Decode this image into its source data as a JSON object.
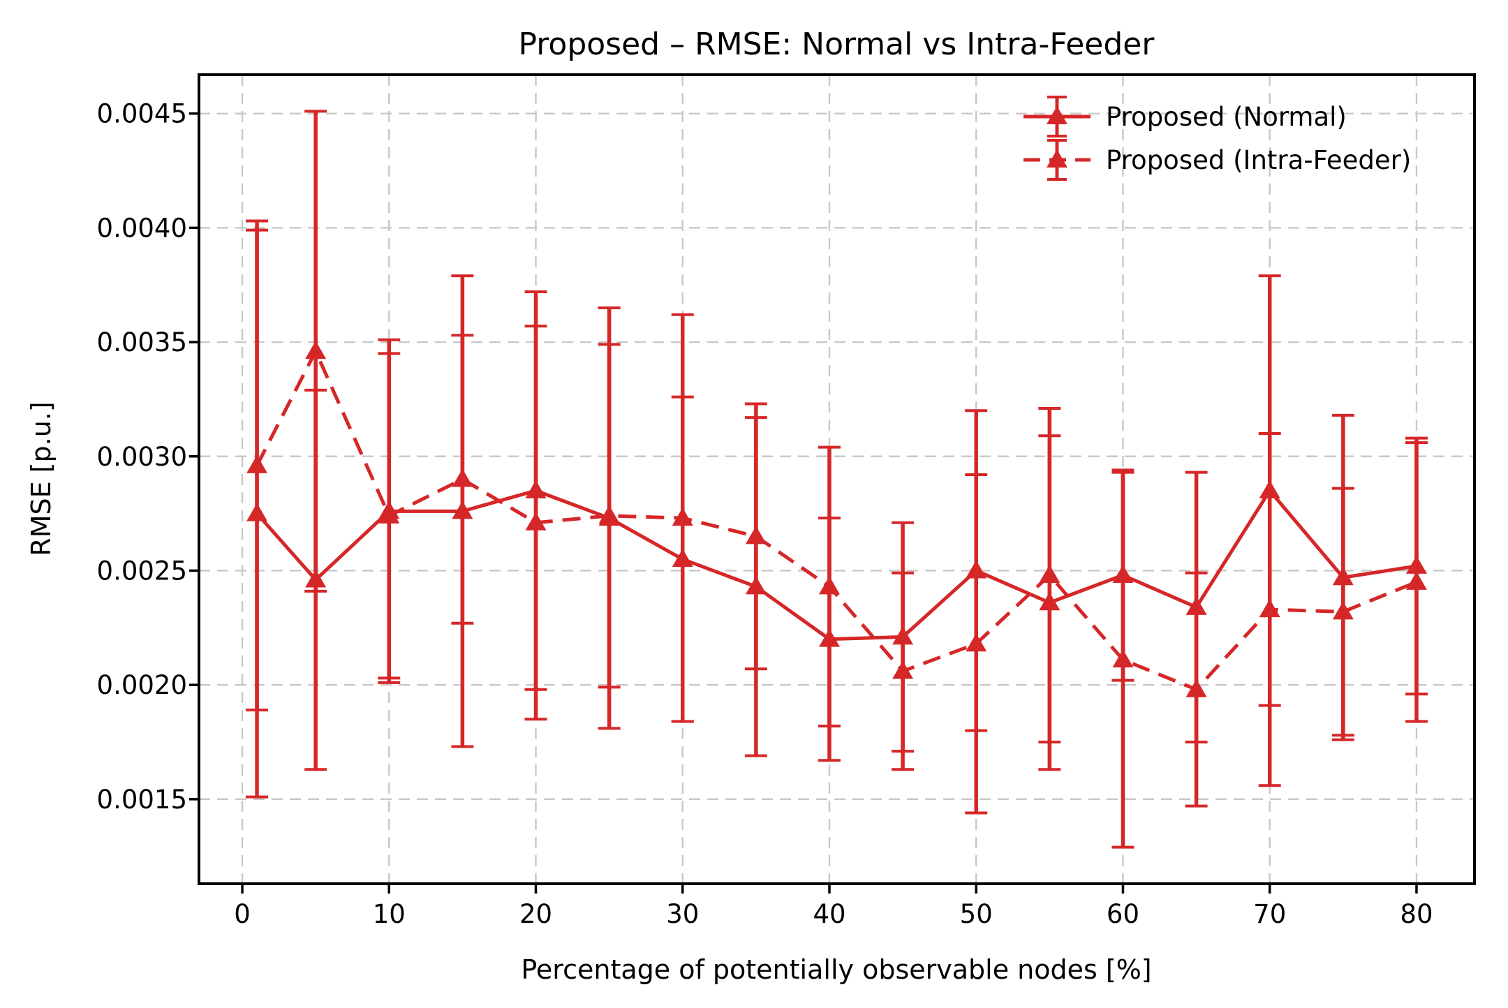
{
  "figure": {
    "background": "#ffffff",
    "text_color": "#000000",
    "grid_color": "#c8c8c8",
    "spine_color": "#000000"
  },
  "chart_data": {
    "type": "line",
    "title": "Proposed – RMSE: Normal vs Intra-Feeder",
    "xlabel": "Percentage of potentially observable nodes [%]",
    "ylabel": "RMSE [p.u.]",
    "grid": true,
    "legend_position": "upper right",
    "xlim": [
      -2.95,
      83.95
    ],
    "ylim": [
      0.00113,
      0.00467
    ],
    "xticks": [
      0,
      10,
      20,
      30,
      40,
      50,
      60,
      70,
      80
    ],
    "xtick_labels": [
      "0",
      "10",
      "20",
      "30",
      "40",
      "50",
      "60",
      "70",
      "80"
    ],
    "yticks": [
      0.0015,
      0.002,
      0.0025,
      0.003,
      0.0035,
      0.004,
      0.0045
    ],
    "ytick_labels": [
      "0.0015",
      "0.0020",
      "0.0025",
      "0.0030",
      "0.0035",
      "0.0040",
      "0.0045"
    ],
    "x": [
      1,
      5,
      10,
      15,
      20,
      25,
      30,
      35,
      40,
      45,
      50,
      55,
      60,
      65,
      70,
      75,
      80
    ],
    "series": [
      {
        "name": "Proposed (Normal)",
        "color": "#d62728",
        "linestyle": "solid",
        "marker": "triangle-up",
        "errorbars": true,
        "y": [
          0.00275,
          0.00246,
          0.00276,
          0.00276,
          0.00285,
          0.00273,
          0.00255,
          0.00243,
          0.0022,
          0.00221,
          0.0025,
          0.00236,
          0.00248,
          0.00234,
          0.00285,
          0.00247,
          0.00252
        ],
        "yerr": [
          0.00124,
          0.00083,
          0.00075,
          0.00103,
          0.00087,
          0.00092,
          0.00071,
          0.00074,
          0.00053,
          0.0005,
          0.0007,
          0.00073,
          0.00046,
          0.00059,
          0.00094,
          0.00071,
          0.00056
        ]
      },
      {
        "name": "Proposed (Intra-Feeder)",
        "color": "#d62728",
        "linestyle": "dashed",
        "marker": "triangle-up",
        "errorbars": true,
        "y": [
          0.00296,
          0.00346,
          0.00274,
          0.0029,
          0.00271,
          0.00274,
          0.00273,
          0.00265,
          0.00243,
          0.00206,
          0.00218,
          0.00248,
          0.00211,
          0.00198,
          0.00233,
          0.00232,
          0.00245
        ],
        "yerr": [
          0.00107,
          0.00105,
          0.00071,
          0.00063,
          0.00086,
          0.00075,
          0.00089,
          0.00058,
          0.00061,
          0.00043,
          0.00074,
          0.00073,
          0.00082,
          0.00051,
          0.00077,
          0.00054,
          0.00061
        ]
      }
    ]
  }
}
